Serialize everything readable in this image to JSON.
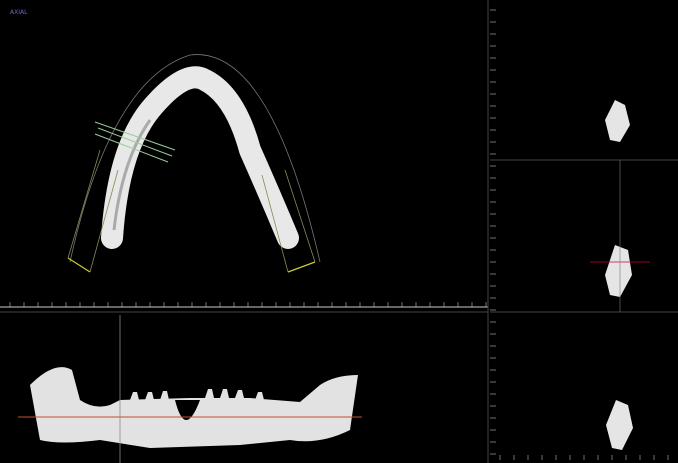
{
  "panels": {
    "axial": {
      "label": "AXIAL"
    }
  }
}
